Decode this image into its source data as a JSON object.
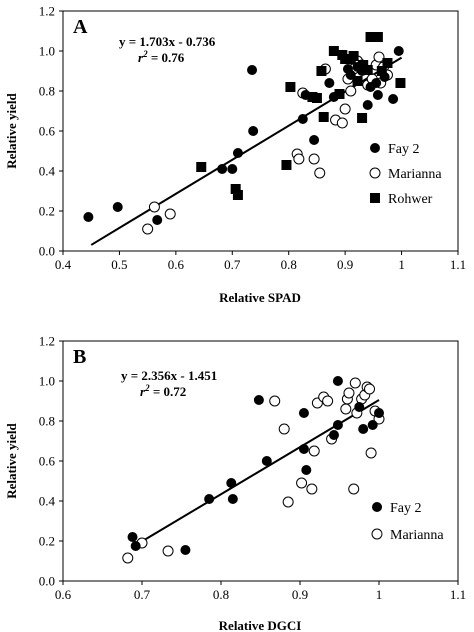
{
  "chart_data": [
    {
      "type": "scatter",
      "panel_label": "A",
      "xlabel": "Relative SPAD",
      "ylabel": "Relative yield",
      "xlim": [
        0.4,
        1.1
      ],
      "ylim": [
        0.0,
        1.2
      ],
      "xticks": [
        "0.4",
        "0.5",
        "0.6",
        "0.7",
        "0.8",
        "0.9",
        "1",
        "1.1"
      ],
      "yticks": [
        "0.0",
        "0.2",
        "0.4",
        "0.6",
        "0.8",
        "1.0",
        "1.2"
      ],
      "equation": "y = 1.703x - 0.736",
      "r2_prefix": "r",
      "r2_sup": "2",
      "r2_value": "= 0.76",
      "trendline": {
        "slope": 1.703,
        "intercept": -0.736,
        "x_start": 0.45,
        "x_end": 1.0
      },
      "legend_position": "right",
      "series": [
        {
          "name": "Fay 2",
          "marker": "filled-circle",
          "points": [
            [
              0.445,
              0.17
            ],
            [
              0.497,
              0.22
            ],
            [
              0.567,
              0.155
            ],
            [
              0.682,
              0.41
            ],
            [
              0.7,
              0.41
            ],
            [
              0.71,
              0.49
            ],
            [
              0.735,
              0.905
            ],
            [
              0.737,
              0.6
            ],
            [
              0.825,
              0.66
            ],
            [
              0.83,
              0.78
            ],
            [
              0.845,
              0.555
            ],
            [
              0.872,
              0.84
            ],
            [
              0.88,
              0.77
            ],
            [
              0.905,
              0.91
            ],
            [
              0.91,
              0.88
            ],
            [
              0.922,
              0.92
            ],
            [
              0.93,
              0.9
            ],
            [
              0.94,
              0.73
            ],
            [
              0.945,
              0.82
            ],
            [
              0.955,
              0.84
            ],
            [
              0.958,
              0.78
            ],
            [
              0.97,
              0.87
            ],
            [
              0.985,
              0.76
            ],
            [
              0.995,
              1.0
            ]
          ]
        },
        {
          "name": "Marianna",
          "marker": "open-circle",
          "points": [
            [
              0.55,
              0.11
            ],
            [
              0.562,
              0.22
            ],
            [
              0.59,
              0.185
            ],
            [
              0.815,
              0.485
            ],
            [
              0.818,
              0.46
            ],
            [
              0.825,
              0.79
            ],
            [
              0.845,
              0.46
            ],
            [
              0.855,
              0.39
            ],
            [
              0.865,
              0.91
            ],
            [
              0.883,
              0.655
            ],
            [
              0.895,
              0.64
            ],
            [
              0.9,
              0.71
            ],
            [
              0.905,
              0.86
            ],
            [
              0.91,
              0.8
            ],
            [
              0.915,
              0.91
            ],
            [
              0.922,
              0.95
            ],
            [
              0.93,
              0.93
            ],
            [
              0.94,
              0.83
            ],
            [
              0.948,
              0.86
            ],
            [
              0.955,
              0.93
            ],
            [
              0.96,
              0.97
            ],
            [
              0.963,
              0.84
            ],
            [
              0.968,
              0.92
            ],
            [
              0.975,
              0.88
            ]
          ]
        },
        {
          "name": "Rohwer",
          "marker": "filled-square",
          "points": [
            [
              0.645,
              0.42
            ],
            [
              0.706,
              0.31
            ],
            [
              0.71,
              0.28
            ],
            [
              0.796,
              0.43
            ],
            [
              0.803,
              0.82
            ],
            [
              0.842,
              0.77
            ],
            [
              0.85,
              0.765
            ],
            [
              0.858,
              0.9
            ],
            [
              0.862,
              0.67
            ],
            [
              0.88,
              1.0
            ],
            [
              0.89,
              0.785
            ],
            [
              0.895,
              0.98
            ],
            [
              0.9,
              0.96
            ],
            [
              0.91,
              0.96
            ],
            [
              0.915,
              0.975
            ],
            [
              0.922,
              0.85
            ],
            [
              0.93,
              0.665
            ],
            [
              0.932,
              0.93
            ],
            [
              0.94,
              0.905
            ],
            [
              0.945,
              1.07
            ],
            [
              0.958,
              1.07
            ],
            [
              0.965,
              0.9
            ],
            [
              0.975,
              0.94
            ],
            [
              0.998,
              0.84
            ]
          ]
        }
      ]
    },
    {
      "type": "scatter",
      "panel_label": "B",
      "xlabel": "Relative DGCI",
      "ylabel": "Relative yield",
      "xlim": [
        0.6,
        1.1
      ],
      "ylim": [
        0.0,
        1.2
      ],
      "xticks": [
        "0.6",
        "0.7",
        "0.8",
        "0.9",
        "1",
        "1.1"
      ],
      "yticks": [
        "0.0",
        "0.2",
        "0.4",
        "0.6",
        "0.8",
        "1.0",
        "1.2"
      ],
      "equation": "y = 2.356x - 1.451",
      "r2_prefix": "r",
      "r2_sup": "2",
      "r2_value": "= 0.72",
      "trendline": {
        "slope": 2.356,
        "intercept": -1.451,
        "x_start": 0.688,
        "x_end": 1.0
      },
      "legend_position": "bottom-right",
      "series": [
        {
          "name": "Fay 2",
          "marker": "filled-circle",
          "points": [
            [
              0.688,
              0.22
            ],
            [
              0.692,
              0.175
            ],
            [
              0.755,
              0.155
            ],
            [
              0.785,
              0.41
            ],
            [
              0.813,
              0.49
            ],
            [
              0.815,
              0.41
            ],
            [
              0.848,
              0.905
            ],
            [
              0.858,
              0.6
            ],
            [
              0.905,
              0.66
            ],
            [
              0.905,
              0.84
            ],
            [
              0.908,
              0.555
            ],
            [
              0.943,
              0.73
            ],
            [
              0.948,
              0.78
            ],
            [
              0.948,
              1.0
            ],
            [
              0.975,
              0.87
            ],
            [
              0.98,
              0.76
            ],
            [
              0.992,
              0.78
            ],
            [
              1.0,
              0.84
            ]
          ]
        },
        {
          "name": "Marianna",
          "marker": "open-circle",
          "points": [
            [
              0.682,
              0.115
            ],
            [
              0.7,
              0.19
            ],
            [
              0.733,
              0.15
            ],
            [
              0.868,
              0.9
            ],
            [
              0.88,
              0.76
            ],
            [
              0.885,
              0.395
            ],
            [
              0.902,
              0.49
            ],
            [
              0.915,
              0.46
            ],
            [
              0.918,
              0.65
            ],
            [
              0.922,
              0.89
            ],
            [
              0.93,
              0.92
            ],
            [
              0.935,
              0.9
            ],
            [
              0.94,
              0.71
            ],
            [
              0.958,
              0.86
            ],
            [
              0.96,
              0.91
            ],
            [
              0.962,
              0.94
            ],
            [
              0.968,
              0.46
            ],
            [
              0.97,
              0.99
            ],
            [
              0.972,
              0.84
            ],
            [
              0.978,
              0.91
            ],
            [
              0.982,
              0.93
            ],
            [
              0.985,
              0.97
            ],
            [
              0.988,
              0.96
            ],
            [
              0.99,
              0.64
            ],
            [
              0.995,
              0.85
            ],
            [
              1.0,
              0.81
            ]
          ]
        }
      ]
    }
  ]
}
